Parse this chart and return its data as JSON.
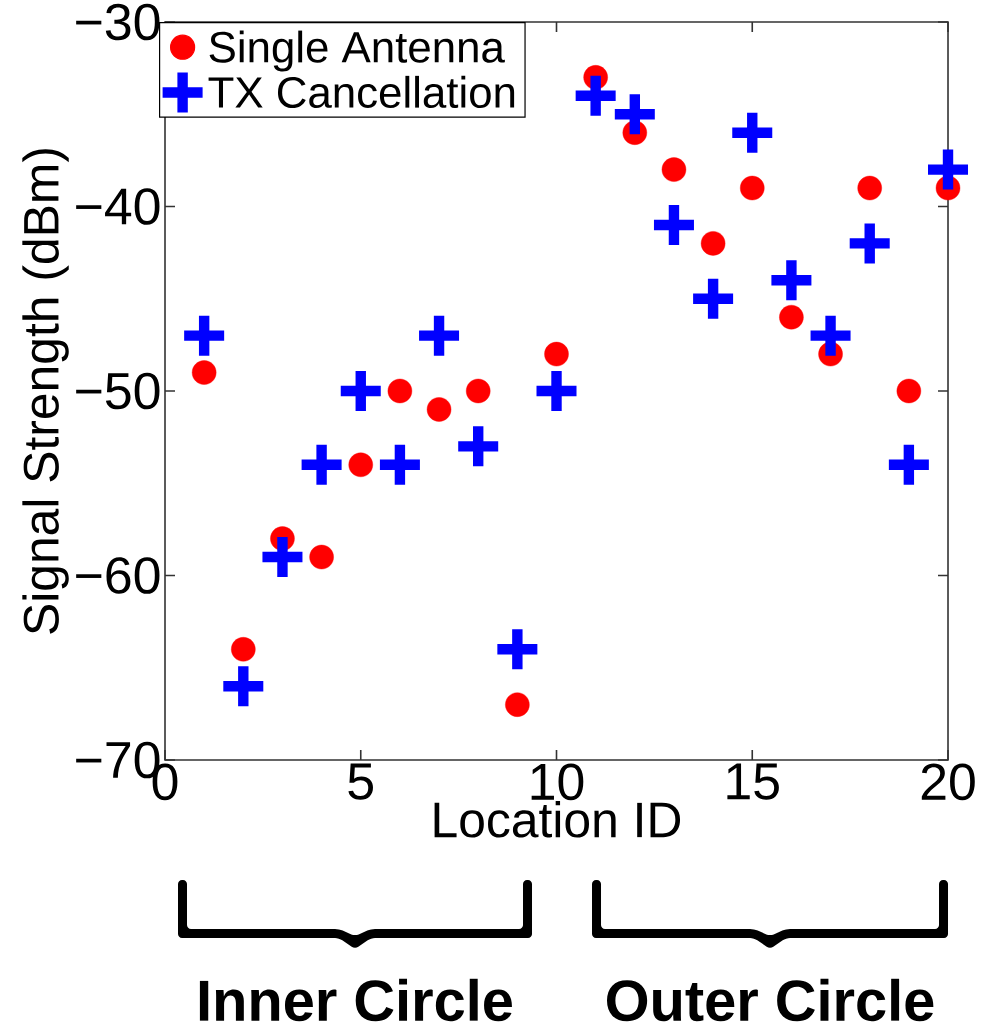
{
  "chart_data": {
    "type": "scatter",
    "xlabel": "Location ID",
    "ylabel": "Signal Strength (dBm)",
    "x": [
      1,
      2,
      3,
      4,
      5,
      6,
      7,
      8,
      9,
      10,
      11,
      12,
      13,
      14,
      15,
      16,
      17,
      18,
      19,
      20
    ],
    "series": [
      {
        "name": "Single Antenna",
        "color": "#ff0000",
        "marker": "circle",
        "values": [
          -49,
          -64,
          -58,
          -59,
          -54,
          -50,
          -51,
          -50,
          -67,
          -48,
          -33,
          -36,
          -38,
          -42,
          -39,
          -46,
          -48,
          -39,
          -50,
          -39
        ]
      },
      {
        "name": "TX Cancellation",
        "color": "#0000ff",
        "marker": "cross",
        "values": [
          -47,
          -66,
          -59,
          -54,
          -50,
          -54,
          -47,
          -53,
          -64,
          -50,
          -34,
          -35,
          -41,
          -45,
          -36,
          -44,
          -47,
          -42,
          -54,
          -38
        ]
      }
    ],
    "xlim": [
      0,
      20
    ],
    "ylim": [
      -70,
      -30
    ],
    "xticks": [
      0,
      5,
      10,
      15,
      20
    ],
    "yticks": [
      {
        "value": -70,
        "label": "−70"
      },
      {
        "value": -60,
        "label": "−60"
      },
      {
        "value": -50,
        "label": "−50"
      },
      {
        "value": -40,
        "label": "−40"
      },
      {
        "value": -30,
        "label": "−30"
      }
    ],
    "grid": false,
    "legend": "top left",
    "annotations": [
      "Inner Circle",
      "Outer Circle"
    ]
  }
}
